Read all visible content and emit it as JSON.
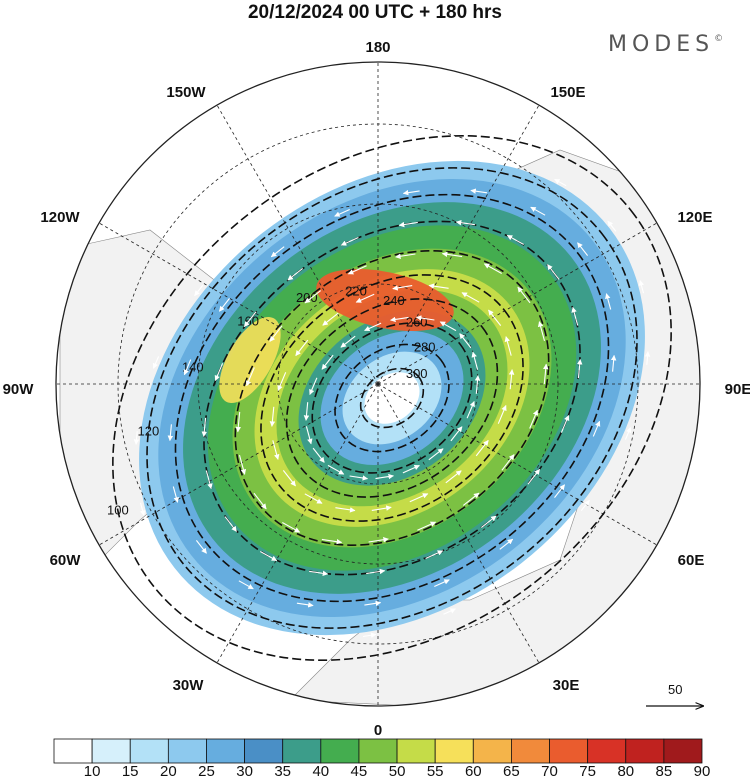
{
  "title": "20/12/2024  00 UTC  + 180 hrs",
  "brand": "MODES",
  "brand_mark": "©",
  "colors": {
    "land": "#f2f2f2",
    "coast": "#888888",
    "contour": "#111111",
    "arrow": "#ffffff"
  },
  "chart_data": {
    "type": "heatmap",
    "projection": "north-polar-stereographic",
    "longitude_labels": {
      "180": "180",
      "150E": "150E",
      "120E": "120E",
      "90E": "90E",
      "60E": "60E",
      "30E": "30E",
      "0": "0",
      "30W": "30W",
      "60W": "60W",
      "90W": "90W",
      "120W": "120W",
      "150W": "150W"
    },
    "wind_speed_bins": [
      10,
      15,
      20,
      25,
      30,
      35,
      40,
      45,
      50,
      55,
      60,
      65,
      70,
      75,
      80,
      85,
      90
    ],
    "colorbar_labels": [
      "10",
      "15",
      "20",
      "25",
      "30",
      "35",
      "40",
      "45",
      "50",
      "55",
      "60",
      "65",
      "70",
      "75",
      "80",
      "85",
      "90"
    ],
    "colorbar_colors": [
      "#ffffff",
      "#d6f0fb",
      "#b3e1f7",
      "#8dc9ee",
      "#66addf",
      "#4a8fc6",
      "#3c9d8a",
      "#44ad4f",
      "#7cc143",
      "#c5dc48",
      "#f6e05a",
      "#f4b44a",
      "#f18a3b",
      "#ea5c2e",
      "#d83226",
      "#c0221f",
      "#a01a1c"
    ],
    "jet_bands": [
      {
        "scale": 0.92,
        "speed": 25
      },
      {
        "scale": 0.85,
        "speed": 30
      },
      {
        "scale": 0.76,
        "speed": 40
      },
      {
        "scale": 0.67,
        "speed": 45
      },
      {
        "scale": 0.58,
        "speed": 50
      },
      {
        "scale": 0.5,
        "speed": 55
      },
      {
        "scale": 0.42,
        "speed": 50
      },
      {
        "scale": 0.34,
        "speed": 40
      },
      {
        "scale": 0.26,
        "speed": 30
      },
      {
        "scale": 0.18,
        "speed": 20
      },
      {
        "scale": 0.1,
        "speed": 10
      }
    ],
    "jet_max_core": {
      "speed": 75
    },
    "contours": [
      {
        "value": 100,
        "label": "100",
        "scale": 0.98
      },
      {
        "value": 120,
        "label": "120",
        "scale": 0.86
      },
      {
        "value": 140,
        "label": "140",
        "scale": 0.76
      },
      {
        "value": 160,
        "label": "160",
        "scale": 0.66
      },
      {
        "value": 200,
        "label": "200",
        "scale": 0.55
      },
      {
        "value": 220,
        "label": "220",
        "scale": 0.46
      },
      {
        "value": 240,
        "label": "240",
        "scale": 0.37
      },
      {
        "value": 260,
        "label": "260",
        "scale": 0.28
      },
      {
        "value": 280,
        "label": "280",
        "scale": 0.2
      },
      {
        "value": 300,
        "label": "300",
        "scale": 0.11
      }
    ],
    "reference_vector": {
      "label": "50"
    }
  }
}
